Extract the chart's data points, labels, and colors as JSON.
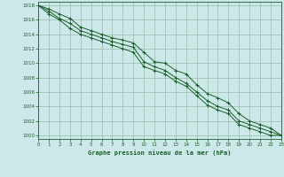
{
  "title": "Graphe pression niveau de la mer (hPa)",
  "background_color": "#cde8e8",
  "grid_color": "#99bbaa",
  "line_color": "#1a5e2a",
  "marker_color": "#1a5e2a",
  "xlim": [
    0,
    23
  ],
  "ylim": [
    999.5,
    1018.5
  ],
  "yticks": [
    1000,
    1002,
    1004,
    1006,
    1008,
    1010,
    1012,
    1014,
    1016,
    1018
  ],
  "xticks": [
    0,
    1,
    2,
    3,
    4,
    5,
    6,
    7,
    8,
    9,
    10,
    11,
    12,
    13,
    14,
    15,
    16,
    17,
    18,
    19,
    20,
    21,
    22,
    23
  ],
  "series": [
    [
      1018,
      1017.5,
      1016.8,
      1016.2,
      1015.0,
      1014.5,
      1014.0,
      1013.5,
      1013.2,
      1012.8,
      1011.5,
      1010.2,
      1010.0,
      1009.0,
      1008.5,
      1007.0,
      1005.8,
      1005.2,
      1004.5,
      1003.0,
      1002.0,
      1001.5,
      1001.0,
      1000.0
    ],
    [
      1018,
      1017.2,
      1016.2,
      1015.5,
      1014.5,
      1014.0,
      1013.5,
      1013.0,
      1012.6,
      1012.2,
      1010.2,
      1009.5,
      1009.0,
      1008.0,
      1007.2,
      1006.0,
      1004.8,
      1004.0,
      1003.5,
      1002.0,
      1001.5,
      1001.0,
      1000.5,
      1000.0
    ],
    [
      1018,
      1016.8,
      1016.0,
      1014.8,
      1014.0,
      1013.5,
      1013.0,
      1012.5,
      1012.0,
      1011.5,
      1009.5,
      1009.0,
      1008.5,
      1007.5,
      1006.8,
      1005.5,
      1004.2,
      1003.5,
      1003.0,
      1001.5,
      1001.0,
      1000.5,
      1000.0,
      1000.0
    ]
  ]
}
